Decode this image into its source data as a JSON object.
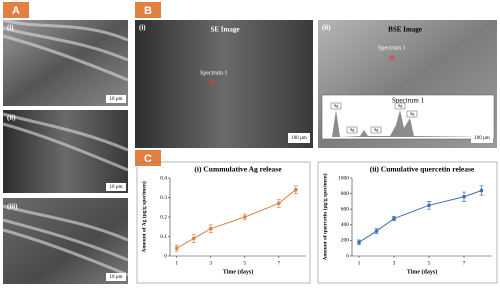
{
  "panels": {
    "a": {
      "label": "A",
      "sub": [
        "(i)",
        "(ii)",
        "(iii)"
      ],
      "scales": [
        "10 µm",
        "10 µm",
        "10 µm"
      ]
    },
    "b": {
      "label": "B",
      "images": [
        {
          "sub": "(i)",
          "title": "SE Image",
          "spectrum": "Spectrum 1",
          "scale": "100 µm"
        },
        {
          "sub": "(ii)",
          "title": "BSE Image",
          "spectrum": "Spectrum 1",
          "scale": "100 µm"
        }
      ],
      "inset": {
        "title": "Spectrum 1",
        "peaks": [
          "Ag",
          "Ag",
          "Ag",
          "Ag",
          "Ag"
        ]
      }
    },
    "c": {
      "label": "C"
    }
  },
  "chart_data": [
    {
      "type": "line",
      "title": "(i) Cummulative Ag release",
      "xlabel": "Time (days)",
      "ylabel": "Amount of Ag (µg/g specimen)",
      "x": [
        1,
        2,
        3,
        5,
        7,
        8
      ],
      "xlim": [
        0.6,
        8.6
      ],
      "xticks": [
        1,
        3,
        5,
        7
      ],
      "ylim": [
        0,
        0.4
      ],
      "yticks": [
        0,
        0.1,
        0.2,
        0.3,
        0.4
      ],
      "series": [
        {
          "color": "#d9824a",
          "values": [
            0.04,
            0.09,
            0.14,
            0.2,
            0.27,
            0.34
          ],
          "errors": [
            0.015,
            0.02,
            0.02,
            0.015,
            0.02,
            0.02
          ]
        }
      ]
    },
    {
      "type": "line",
      "title": "(ii) Cumulative quercetin release",
      "xlabel": "Time (days)",
      "ylabel": "Amount of quercetin (µg/g specimen)",
      "x": [
        1,
        2,
        3,
        5,
        7,
        8
      ],
      "xlim": [
        0.6,
        8.6
      ],
      "xticks": [
        1,
        3,
        5,
        7
      ],
      "ylim": [
        0,
        1000
      ],
      "yticks": [
        0,
        200,
        400,
        600,
        800,
        1000
      ],
      "series": [
        {
          "color": "#3f6fb0",
          "values": [
            175,
            320,
            480,
            650,
            760,
            840
          ],
          "errors": [
            30,
            30,
            25,
            50,
            60,
            60
          ]
        }
      ]
    }
  ]
}
